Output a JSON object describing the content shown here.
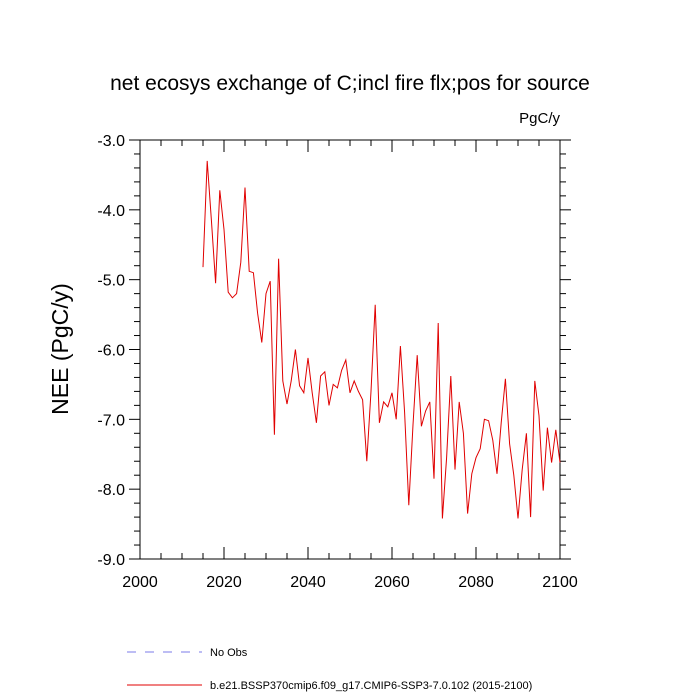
{
  "chart_data": {
    "type": "line",
    "title": "net ecosys exchange of C;incl fire flx;pos for source",
    "units": "PgC/y",
    "ylabel": "NEE  (PgC/y)",
    "xlabel": "",
    "xlim": [
      2000,
      2100
    ],
    "ylim": [
      -9.0,
      -3.0
    ],
    "x_ticks": [
      2000,
      2020,
      2040,
      2060,
      2080,
      2100
    ],
    "x_tick_labels": [
      "2000",
      "2020",
      "2040",
      "2060",
      "2080",
      "2100"
    ],
    "y_ticks": [
      -3.0,
      -4.0,
      -5.0,
      -6.0,
      -7.0,
      -8.0,
      -9.0
    ],
    "y_tick_labels": [
      "-3.0",
      "-4.0",
      "-5.0",
      "-6.0",
      "-7.0",
      "-8.0",
      "-9.0"
    ],
    "grid": false,
    "legend_placement": "bottom",
    "series": [
      {
        "name": "No Obs",
        "color": "#7b7bea",
        "dash": "dashed",
        "x": [],
        "y": []
      },
      {
        "name": "b.e21.BSSP370cmip6.f09_g17.CMIP6-SSP3-7.0.102 (2015-2100)",
        "color": "#e00000",
        "dash": "solid",
        "x": [
          2015,
          2016,
          2017,
          2018,
          2019,
          2020,
          2021,
          2022,
          2023,
          2024,
          2025,
          2026,
          2027,
          2028,
          2029,
          2030,
          2031,
          2032,
          2033,
          2034,
          2035,
          2036,
          2037,
          2038,
          2039,
          2040,
          2041,
          2042,
          2043,
          2044,
          2045,
          2046,
          2047,
          2048,
          2049,
          2050,
          2051,
          2052,
          2053,
          2054,
          2055,
          2056,
          2057,
          2058,
          2059,
          2060,
          2061,
          2062,
          2063,
          2064,
          2065,
          2066,
          2067,
          2068,
          2069,
          2070,
          2071,
          2072,
          2073,
          2074,
          2075,
          2076,
          2077,
          2078,
          2079,
          2080,
          2081,
          2082,
          2083,
          2084,
          2085,
          2086,
          2087,
          2088,
          2089,
          2090,
          2091,
          2092,
          2093,
          2094,
          2095,
          2096,
          2097,
          2098,
          2099,
          2100
        ],
        "y": [
          -4.82,
          -3.3,
          -4.15,
          -5.05,
          -3.72,
          -4.28,
          -5.18,
          -5.26,
          -5.2,
          -4.75,
          -3.68,
          -4.88,
          -4.9,
          -5.48,
          -5.9,
          -5.2,
          -5.02,
          -7.22,
          -4.7,
          -6.45,
          -6.78,
          -6.45,
          -6.0,
          -6.52,
          -6.62,
          -6.12,
          -6.62,
          -7.05,
          -6.38,
          -6.32,
          -6.8,
          -6.5,
          -6.55,
          -6.3,
          -6.15,
          -6.62,
          -6.45,
          -6.6,
          -6.72,
          -7.6,
          -6.6,
          -5.36,
          -7.05,
          -6.75,
          -6.82,
          -6.62,
          -7.0,
          -5.95,
          -6.9,
          -8.23,
          -7.08,
          -6.08,
          -7.1,
          -6.88,
          -6.75,
          -7.85,
          -5.62,
          -8.42,
          -7.55,
          -6.38,
          -7.72,
          -6.75,
          -7.2,
          -8.35,
          -7.78,
          -7.55,
          -7.42,
          -7.0,
          -7.02,
          -7.3,
          -7.78,
          -7.05,
          -6.42,
          -7.35,
          -7.8,
          -8.42,
          -7.72,
          -7.2,
          -8.4,
          -6.45,
          -6.95,
          -8.02,
          -7.12,
          -7.62,
          -7.15,
          -7.62
        ]
      }
    ]
  }
}
